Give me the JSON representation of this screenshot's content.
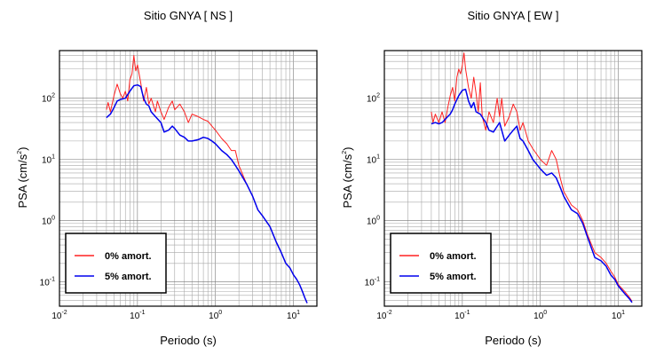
{
  "chart_data": [
    {
      "type": "line",
      "title": "Sitio GNYA [ NS ]",
      "xlabel": "Periodo (s)",
      "ylabel_main": "PSA (cm/s",
      "ylabel_sup": "2",
      "ylabel_close": ")",
      "x_scale": "log",
      "y_scale": "log",
      "xlim": [
        0.01,
        20
      ],
      "ylim": [
        0.04,
        600
      ],
      "grid": true,
      "legend_position": "bottom-left",
      "x_ticks": [
        {
          "base": "10",
          "exp": "-2",
          "v": 0.01
        },
        {
          "base": "10",
          "exp": "-1",
          "v": 0.1
        },
        {
          "base": "10",
          "exp": "0",
          "v": 1
        },
        {
          "base": "10",
          "exp": "1",
          "v": 10
        }
      ],
      "y_ticks": [
        {
          "base": "10",
          "exp": "-1",
          "v": 0.1
        },
        {
          "base": "10",
          "exp": "0",
          "v": 1
        },
        {
          "base": "10",
          "exp": "1",
          "v": 10
        },
        {
          "base": "10",
          "exp": "2",
          "v": 100
        }
      ],
      "series": [
        {
          "name": "0% amort.",
          "color": "#ff2020",
          "points": [
            [
              0.04,
              65
            ],
            [
              0.042,
              85
            ],
            [
              0.045,
              60
            ],
            [
              0.05,
              110
            ],
            [
              0.055,
              170
            ],
            [
              0.06,
              120
            ],
            [
              0.065,
              100
            ],
            [
              0.07,
              130
            ],
            [
              0.075,
              90
            ],
            [
              0.08,
              200
            ],
            [
              0.085,
              250
            ],
            [
              0.09,
              500
            ],
            [
              0.095,
              280
            ],
            [
              0.1,
              350
            ],
            [
              0.11,
              180
            ],
            [
              0.12,
              90
            ],
            [
              0.13,
              150
            ],
            [
              0.14,
              80
            ],
            [
              0.15,
              100
            ],
            [
              0.17,
              60
            ],
            [
              0.18,
              90
            ],
            [
              0.2,
              60
            ],
            [
              0.22,
              45
            ],
            [
              0.25,
              70
            ],
            [
              0.28,
              90
            ],
            [
              0.3,
              65
            ],
            [
              0.35,
              80
            ],
            [
              0.4,
              60
            ],
            [
              0.45,
              40
            ],
            [
              0.5,
              55
            ],
            [
              0.6,
              50
            ],
            [
              0.7,
              45
            ],
            [
              0.8,
              42
            ],
            [
              0.9,
              35
            ],
            [
              1.0,
              30
            ],
            [
              1.2,
              22
            ],
            [
              1.4,
              18
            ],
            [
              1.6,
              14
            ],
            [
              1.8,
              14
            ],
            [
              2.0,
              8
            ],
            [
              2.5,
              4
            ],
            [
              3.0,
              2.5
            ],
            [
              3.5,
              1.5
            ],
            [
              4.0,
              1.2
            ],
            [
              5.0,
              0.8
            ],
            [
              6.0,
              0.45
            ],
            [
              7.0,
              0.3
            ],
            [
              8.0,
              0.2
            ],
            [
              9.0,
              0.17
            ],
            [
              10.0,
              0.13
            ],
            [
              11.0,
              0.11
            ],
            [
              12.0,
              0.09
            ],
            [
              13.0,
              0.07
            ],
            [
              14.0,
              0.055
            ],
            [
              15.0,
              0.045
            ]
          ]
        },
        {
          "name": "5% amort.",
          "color": "#0000ee",
          "points": [
            [
              0.04,
              48
            ],
            [
              0.045,
              55
            ],
            [
              0.05,
              70
            ],
            [
              0.055,
              90
            ],
            [
              0.06,
              95
            ],
            [
              0.07,
              100
            ],
            [
              0.08,
              130
            ],
            [
              0.09,
              160
            ],
            [
              0.1,
              165
            ],
            [
              0.11,
              155
            ],
            [
              0.12,
              100
            ],
            [
              0.13,
              80
            ],
            [
              0.14,
              75
            ],
            [
              0.15,
              60
            ],
            [
              0.17,
              50
            ],
            [
              0.2,
              40
            ],
            [
              0.22,
              28
            ],
            [
              0.25,
              30
            ],
            [
              0.28,
              35
            ],
            [
              0.3,
              32
            ],
            [
              0.35,
              25
            ],
            [
              0.4,
              23
            ],
            [
              0.45,
              20
            ],
            [
              0.5,
              20
            ],
            [
              0.6,
              21
            ],
            [
              0.7,
              23
            ],
            [
              0.8,
              22
            ],
            [
              0.9,
              20
            ],
            [
              1.0,
              18
            ],
            [
              1.2,
              14
            ],
            [
              1.4,
              12
            ],
            [
              1.6,
              10
            ],
            [
              1.8,
              8
            ],
            [
              2.0,
              6.5
            ],
            [
              2.5,
              4
            ],
            [
              3.0,
              2.5
            ],
            [
              3.5,
              1.5
            ],
            [
              4.0,
              1.2
            ],
            [
              5.0,
              0.8
            ],
            [
              6.0,
              0.45
            ],
            [
              7.0,
              0.3
            ],
            [
              8.0,
              0.2
            ],
            [
              9.0,
              0.17
            ],
            [
              10.0,
              0.13
            ],
            [
              11.0,
              0.11
            ],
            [
              12.0,
              0.09
            ],
            [
              13.0,
              0.07
            ],
            [
              14.0,
              0.055
            ],
            [
              15.0,
              0.045
            ]
          ]
        }
      ]
    },
    {
      "type": "line",
      "title": "Sitio GNYA [ EW ]",
      "xlabel": "Periodo (s)",
      "ylabel_main": "PSA (cm/s",
      "ylabel_sup": "2",
      "ylabel_close": ")",
      "x_scale": "log",
      "y_scale": "log",
      "xlim": [
        0.01,
        20
      ],
      "ylim": [
        0.04,
        600
      ],
      "grid": true,
      "legend_position": "bottom-left",
      "x_ticks": [
        {
          "base": "10",
          "exp": "-2",
          "v": 0.01
        },
        {
          "base": "10",
          "exp": "-1",
          "v": 0.1
        },
        {
          "base": "10",
          "exp": "0",
          "v": 1
        },
        {
          "base": "10",
          "exp": "1",
          "v": 10
        }
      ],
      "y_ticks": [
        {
          "base": "10",
          "exp": "-1",
          "v": 0.1
        },
        {
          "base": "10",
          "exp": "0",
          "v": 1
        },
        {
          "base": "10",
          "exp": "1",
          "v": 10
        },
        {
          "base": "10",
          "exp": "2",
          "v": 100
        }
      ],
      "series": [
        {
          "name": "0% amort.",
          "color": "#ff2020",
          "points": [
            [
              0.04,
              60
            ],
            [
              0.042,
              40
            ],
            [
              0.045,
              55
            ],
            [
              0.05,
              40
            ],
            [
              0.055,
              60
            ],
            [
              0.06,
              40
            ],
            [
              0.065,
              70
            ],
            [
              0.07,
              110
            ],
            [
              0.075,
              150
            ],
            [
              0.08,
              90
            ],
            [
              0.085,
              220
            ],
            [
              0.09,
              300
            ],
            [
              0.095,
              250
            ],
            [
              0.1,
              350
            ],
            [
              0.105,
              550
            ],
            [
              0.11,
              300
            ],
            [
              0.12,
              150
            ],
            [
              0.13,
              100
            ],
            [
              0.14,
              220
            ],
            [
              0.15,
              120
            ],
            [
              0.16,
              60
            ],
            [
              0.17,
              180
            ],
            [
              0.18,
              50
            ],
            [
              0.2,
              30
            ],
            [
              0.22,
              60
            ],
            [
              0.25,
              40
            ],
            [
              0.28,
              100
            ],
            [
              0.3,
              50
            ],
            [
              0.32,
              100
            ],
            [
              0.35,
              35
            ],
            [
              0.4,
              50
            ],
            [
              0.45,
              80
            ],
            [
              0.5,
              60
            ],
            [
              0.55,
              30
            ],
            [
              0.6,
              40
            ],
            [
              0.7,
              20
            ],
            [
              0.8,
              15
            ],
            [
              1.0,
              10
            ],
            [
              1.2,
              8
            ],
            [
              1.4,
              14
            ],
            [
              1.6,
              10
            ],
            [
              1.8,
              5
            ],
            [
              2.0,
              3
            ],
            [
              2.5,
              1.8
            ],
            [
              3.0,
              1.5
            ],
            [
              3.5,
              1.0
            ],
            [
              4.0,
              0.6
            ],
            [
              5.0,
              0.3
            ],
            [
              6.0,
              0.25
            ],
            [
              7.0,
              0.2
            ],
            [
              8.0,
              0.15
            ],
            [
              9.0,
              0.12
            ],
            [
              10.0,
              0.09
            ],
            [
              12.0,
              0.07
            ],
            [
              14.0,
              0.055
            ],
            [
              15.0,
              0.048
            ]
          ]
        },
        {
          "name": "5% amort.",
          "color": "#0000ee",
          "points": [
            [
              0.04,
              38
            ],
            [
              0.045,
              40
            ],
            [
              0.05,
              38
            ],
            [
              0.055,
              40
            ],
            [
              0.06,
              45
            ],
            [
              0.065,
              50
            ],
            [
              0.07,
              55
            ],
            [
              0.075,
              65
            ],
            [
              0.08,
              80
            ],
            [
              0.09,
              110
            ],
            [
              0.1,
              135
            ],
            [
              0.11,
              140
            ],
            [
              0.12,
              90
            ],
            [
              0.13,
              70
            ],
            [
              0.14,
              85
            ],
            [
              0.15,
              60
            ],
            [
              0.17,
              55
            ],
            [
              0.2,
              40
            ],
            [
              0.22,
              30
            ],
            [
              0.25,
              28
            ],
            [
              0.3,
              40
            ],
            [
              0.32,
              30
            ],
            [
              0.35,
              20
            ],
            [
              0.4,
              25
            ],
            [
              0.45,
              30
            ],
            [
              0.5,
              35
            ],
            [
              0.55,
              22
            ],
            [
              0.6,
              20
            ],
            [
              0.7,
              14
            ],
            [
              0.8,
              10
            ],
            [
              1.0,
              7
            ],
            [
              1.2,
              5.5
            ],
            [
              1.4,
              6
            ],
            [
              1.6,
              5
            ],
            [
              1.8,
              3.5
            ],
            [
              2.0,
              2.5
            ],
            [
              2.5,
              1.5
            ],
            [
              3.0,
              1.3
            ],
            [
              3.5,
              0.9
            ],
            [
              4.0,
              0.55
            ],
            [
              5.0,
              0.25
            ],
            [
              6.0,
              0.22
            ],
            [
              7.0,
              0.18
            ],
            [
              8.0,
              0.13
            ],
            [
              9.0,
              0.11
            ],
            [
              10.0,
              0.085
            ],
            [
              12.0,
              0.065
            ],
            [
              14.0,
              0.052
            ],
            [
              15.0,
              0.046
            ]
          ]
        }
      ]
    }
  ]
}
